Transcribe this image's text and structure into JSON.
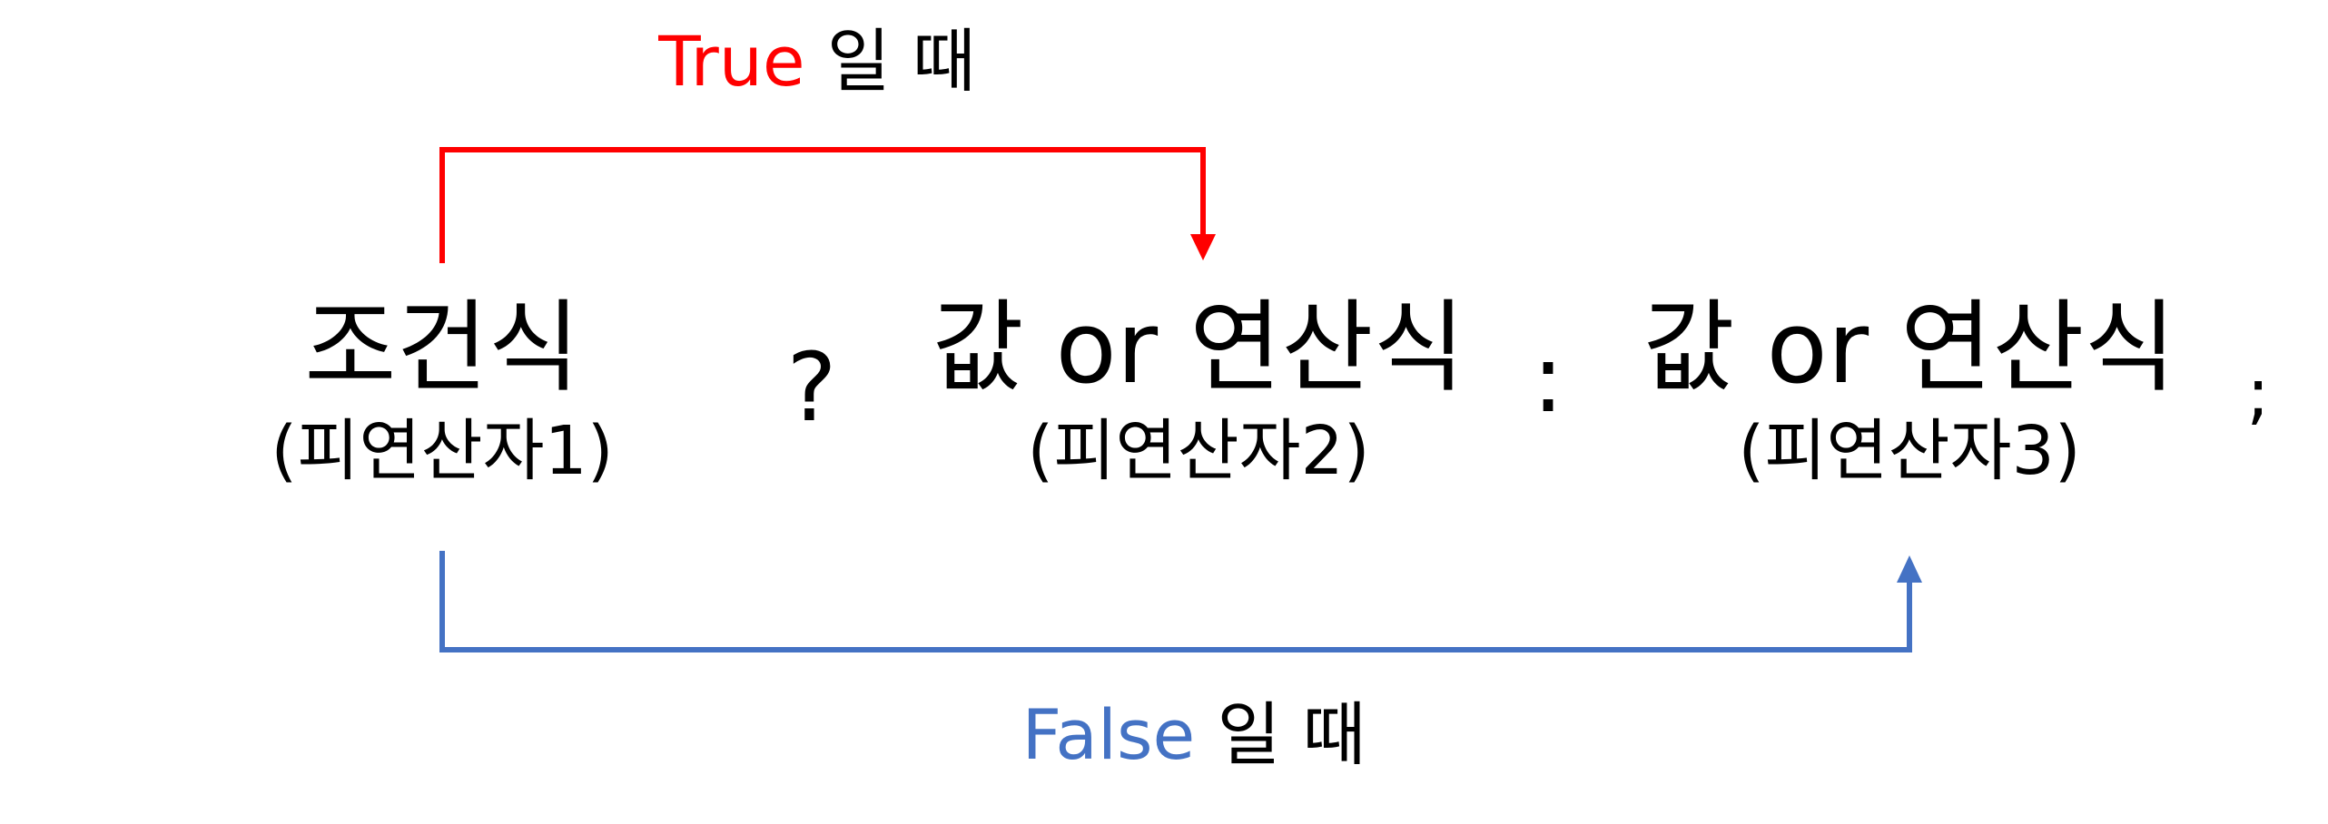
{
  "colors": {
    "true_branch": "#ff0000",
    "false_branch": "#4472c4",
    "text": "#000000"
  },
  "operands": [
    {
      "main": "조건식",
      "sub": "(피연산자1)"
    },
    {
      "main": "값 or 연산식",
      "sub": "(피연산자2)"
    },
    {
      "main": "값 or 연산식",
      "sub": "(피연산자3)"
    }
  ],
  "operators": {
    "question": "?",
    "colon": ":",
    "semicolon": ";"
  },
  "labels": {
    "true_keyword": "True",
    "true_suffix": " 일 때",
    "false_keyword": "False",
    "false_suffix": " 일 때"
  }
}
